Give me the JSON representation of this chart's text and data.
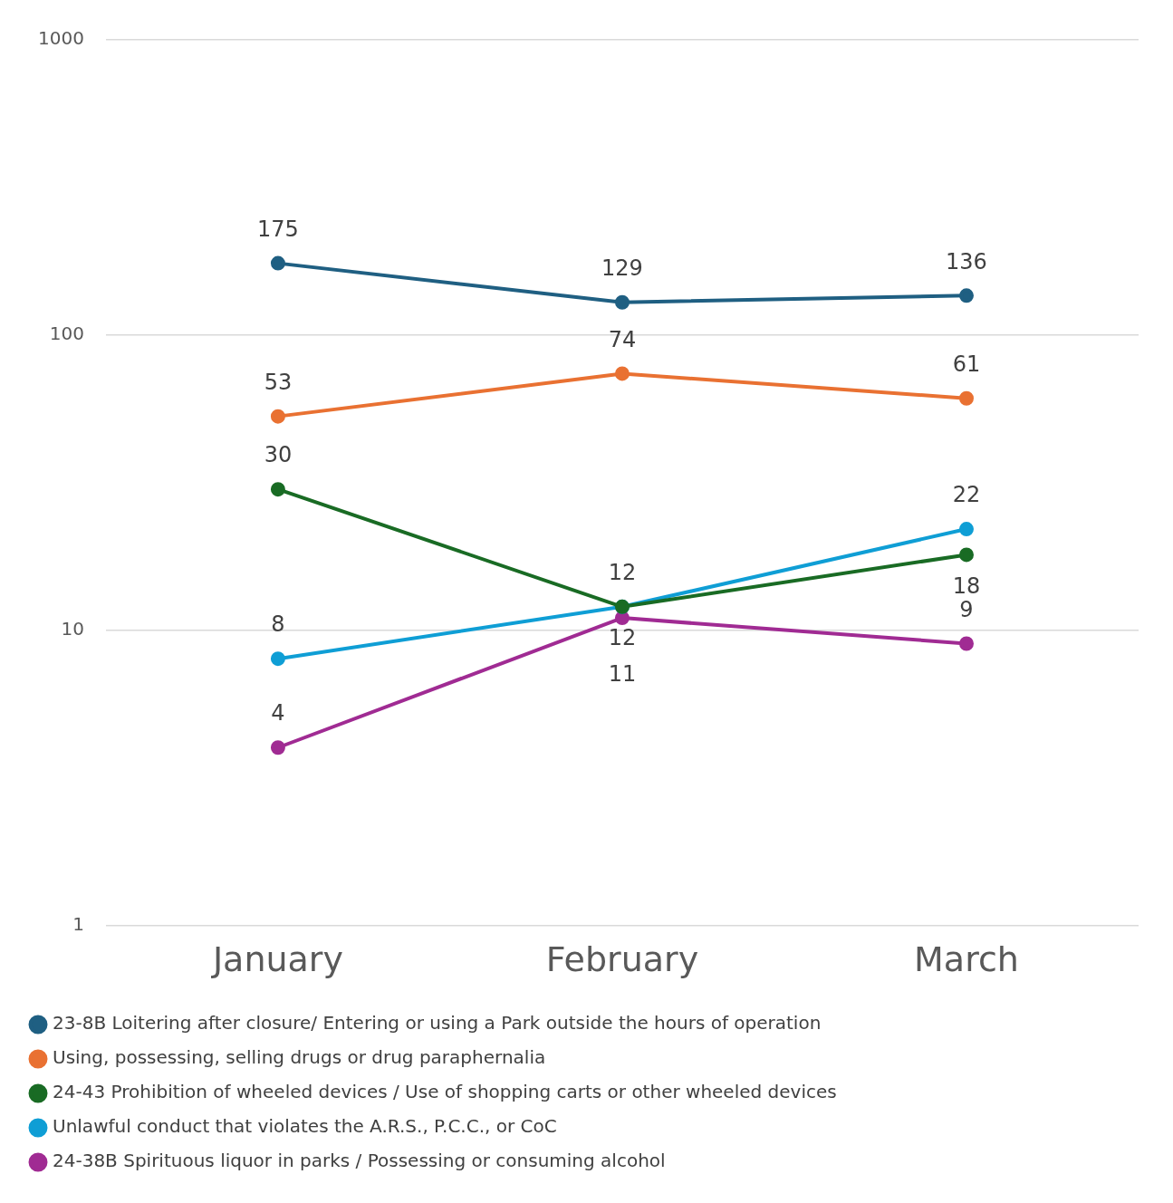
{
  "chart_data": {
    "type": "line",
    "categories": [
      "January",
      "February",
      "March"
    ],
    "series": [
      {
        "name": "23-8B Loitering after closure/ Entering or using a Park outside the hours of operation",
        "color": "#1f5f82",
        "values": [
          175,
          129,
          136
        ]
      },
      {
        "name": "Using, possessing, selling drugs or drug paraphernalia",
        "color": "#e97132",
        "values": [
          53,
          74,
          61
        ]
      },
      {
        "name": "24-43 Prohibition of wheeled devices / Use of shopping carts or other wheeled devices",
        "color": "#196b24",
        "values": [
          30,
          12,
          18
        ]
      },
      {
        "name": "Unlawful conduct that violates the A.R.S., P.C.C., or CoC",
        "color": "#0f9ed5",
        "values": [
          8,
          12,
          22
        ]
      },
      {
        "name": "24-38B Spirituous liquor in parks / Possessing or consuming alcohol",
        "color": "#a02b93",
        "values": [
          4,
          11,
          9
        ]
      }
    ],
    "log": "y",
    "ylim": [
      1,
      1000
    ],
    "yticks": [
      1,
      10,
      100,
      1000
    ],
    "grid": "y",
    "legend": "bottom",
    "marker": "circle",
    "line_style": "solid",
    "data_labels": true
  }
}
